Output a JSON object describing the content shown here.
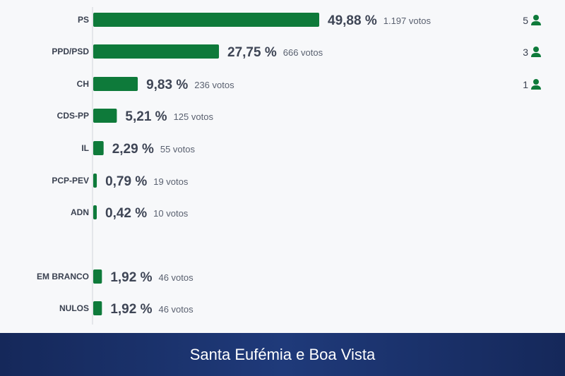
{
  "footer": {
    "title": "Santa Eufémia e Boa Vista"
  },
  "colors": {
    "bar": "#0e7a3a",
    "seat_icon": "#0e7a3a",
    "axis": "#d0d4da",
    "footer_bg": "#1b316d"
  },
  "chart_data": {
    "type": "bar",
    "orientation": "horizontal",
    "xlim": [
      0,
      100
    ],
    "categories": [
      "PS",
      "PPD/PSD",
      "CH",
      "CDS-PP",
      "IL",
      "PCP-PEV",
      "ADN",
      "EM BRANCO",
      "NULOS"
    ],
    "values": [
      49.88,
      27.75,
      9.83,
      5.21,
      2.29,
      0.79,
      0.42,
      1.92,
      1.92
    ],
    "percent_labels": [
      "49,88 %",
      "27,75 %",
      "9,83 %",
      "5,21 %",
      "2,29 %",
      "0,79 %",
      "0,42 %",
      "1,92 %",
      "1,92 %"
    ],
    "votes_labels": [
      "1.197 votos",
      "666 votos",
      "236 votos",
      "125 votos",
      "55 votos",
      "19 votos",
      "10 votos",
      "46 votos",
      "46 votos"
    ],
    "seats": [
      "5",
      "3",
      "1",
      "",
      "",
      "",
      "",
      "",
      ""
    ],
    "seat_icon": "person-icon"
  }
}
